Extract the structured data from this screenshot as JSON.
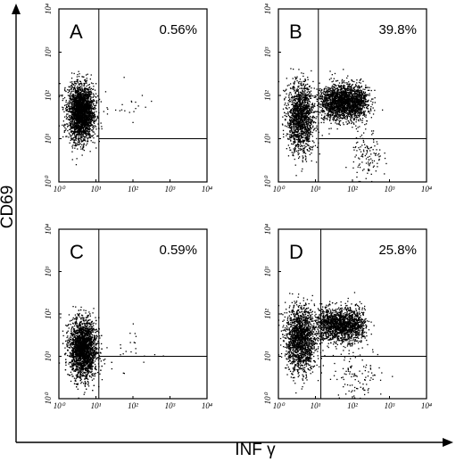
{
  "chart_data": [
    {
      "panel": "A",
      "type": "scatter",
      "percent": "0.56%",
      "xscale": "log",
      "yscale": "log",
      "xlim": [
        1,
        10000
      ],
      "ylim": [
        1,
        10000
      ],
      "xticks": [
        "10⁰",
        "10¹",
        "10²",
        "10³",
        "10⁴"
      ],
      "yticks": [
        "10⁰",
        "10¹",
        "10²",
        "10³",
        "10⁴"
      ],
      "quadrant_gate": {
        "x": 12,
        "y": 10
      },
      "populations": [
        {
          "x_center": 4,
          "x_spread": 0.17,
          "y_center": 40,
          "y_spread": 0.32,
          "count": 2600,
          "shape": "negative-column"
        },
        {
          "x_center": 80,
          "x_spread": 0.35,
          "y_center": 60,
          "y_spread": 0.25,
          "count": 22,
          "shape": "sparse"
        }
      ]
    },
    {
      "panel": "B",
      "type": "scatter",
      "percent": "39.8%",
      "xscale": "log",
      "yscale": "log",
      "xlim": [
        1,
        10000
      ],
      "ylim": [
        1,
        10000
      ],
      "xticks": [
        "10⁰",
        "10¹",
        "10²",
        "10³",
        "10⁴"
      ],
      "yticks": [
        "10⁰",
        "10¹",
        "10²",
        "10³",
        "10⁴"
      ],
      "quadrant_gate": {
        "x": 12,
        "y": 10
      },
      "populations": [
        {
          "x_center": 4,
          "x_spread": 0.18,
          "y_center": 30,
          "y_spread": 0.4,
          "count": 1500,
          "shape": "negative-column"
        },
        {
          "x_center": 60,
          "x_spread": 0.45,
          "y_center": 70,
          "y_spread": 0.2,
          "count": 2200,
          "shape": "positive-band"
        },
        {
          "x_center": 250,
          "x_spread": 0.2,
          "y_center": 4,
          "y_spread": 0.3,
          "count": 120,
          "shape": "low-tail"
        }
      ]
    },
    {
      "panel": "C",
      "type": "scatter",
      "percent": "0.59%",
      "xscale": "log",
      "yscale": "log",
      "xlim": [
        1,
        10000
      ],
      "ylim": [
        1,
        10000
      ],
      "xticks": [
        "10⁰",
        "10¹",
        "10²",
        "10³",
        "10⁴"
      ],
      "yticks": [
        "10⁰",
        "10¹",
        "10²",
        "10³",
        "10⁴"
      ],
      "quadrant_gate": {
        "x": 12,
        "y": 10
      },
      "populations": [
        {
          "x_center": 4.5,
          "x_spread": 0.18,
          "y_center": 15,
          "y_spread": 0.35,
          "count": 2600,
          "shape": "negative-column"
        },
        {
          "x_center": 60,
          "x_spread": 0.4,
          "y_center": 12,
          "y_spread": 0.35,
          "count": 25,
          "shape": "sparse"
        }
      ]
    },
    {
      "panel": "D",
      "type": "scatter",
      "percent": "25.8%",
      "xscale": "log",
      "yscale": "log",
      "xlim": [
        1,
        10000
      ],
      "ylim": [
        1,
        10000
      ],
      "xticks": [
        "10⁰",
        "10¹",
        "10²",
        "10³",
        "10⁴"
      ],
      "yticks": [
        "10⁰",
        "10¹",
        "10²",
        "10³",
        "10⁴"
      ],
      "quadrant_gate": {
        "x": 14,
        "y": 10
      },
      "populations": [
        {
          "x_center": 4,
          "x_spread": 0.2,
          "y_center": 25,
          "y_spread": 0.38,
          "count": 1700,
          "shape": "negative-column"
        },
        {
          "x_center": 50,
          "x_spread": 0.45,
          "y_center": 55,
          "y_spread": 0.2,
          "count": 1700,
          "shape": "positive-band"
        },
        {
          "x_center": 150,
          "x_spread": 0.35,
          "y_center": 4,
          "y_spread": 0.3,
          "count": 110,
          "shape": "low-tail"
        }
      ]
    }
  ],
  "axes": {
    "xlabel": "INF γ",
    "ylabel": "CD69"
  },
  "colors": {
    "ink": "#000000",
    "background": "#ffffff"
  }
}
